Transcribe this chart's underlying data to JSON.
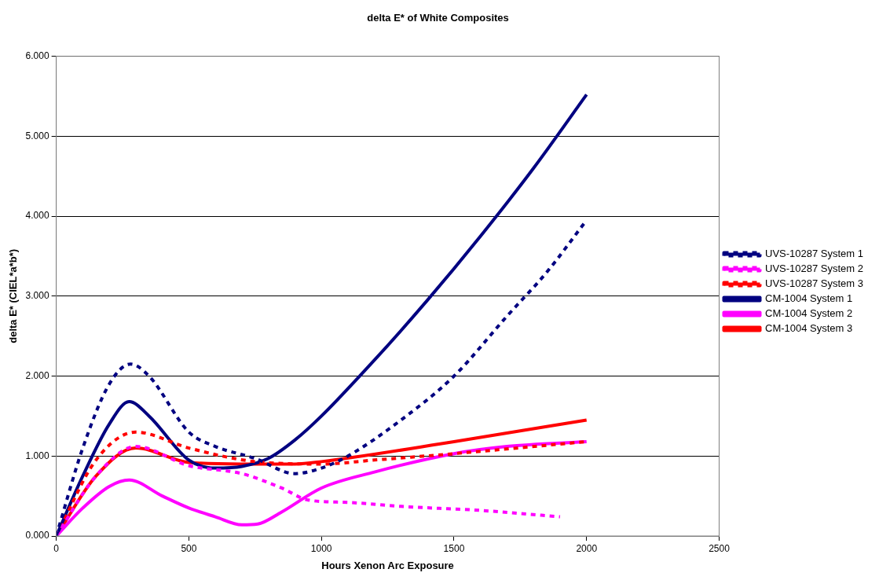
{
  "chart_data": {
    "type": "line",
    "title": "delta E* of White Composites",
    "xlabel": "Hours Xenon Arc Exposure",
    "ylabel": "delta E* (CIEL*a*b*)",
    "xlim": [
      0,
      2500
    ],
    "xticks": [
      0,
      500,
      1000,
      1500,
      2000,
      2500
    ],
    "ylim": [
      0,
      6
    ],
    "yticks": [
      {
        "value": 0,
        "label": "0.000"
      },
      {
        "value": 1,
        "label": "1.000"
      },
      {
        "value": 2,
        "label": "2.000"
      },
      {
        "value": 3,
        "label": "3.000"
      },
      {
        "value": 4,
        "label": "4.000"
      },
      {
        "value": 5,
        "label": "5.000"
      },
      {
        "value": 6,
        "label": "6.000"
      }
    ],
    "grid": "y",
    "legend": "right",
    "marker": "none",
    "series": [
      {
        "name": "CM-1004 System 1",
        "color": "#000080",
        "line_style": "solid",
        "x": [
          0,
          100,
          200,
          275,
          350,
          500,
          600,
          700,
          800,
          900,
          1000,
          1200,
          1400,
          1600,
          1800,
          2000
        ],
        "values": [
          0,
          0.75,
          1.4,
          1.68,
          1.5,
          0.95,
          0.85,
          0.87,
          0.97,
          1.2,
          1.5,
          2.2,
          2.95,
          3.75,
          4.6,
          5.52
        ]
      },
      {
        "name": "CM-1004 System 2",
        "color": "#ff00ff",
        "line_style": "solid",
        "x": [
          0,
          100,
          200,
          275,
          400,
          500,
          600,
          700,
          760,
          850,
          1000,
          1200,
          1500,
          1700,
          2000
        ],
        "values": [
          0,
          0.35,
          0.62,
          0.7,
          0.5,
          0.35,
          0.24,
          0.14,
          0.15,
          0.3,
          0.6,
          0.8,
          1.03,
          1.12,
          1.18
        ]
      },
      {
        "name": "CM-1004 System 3",
        "color": "#ff0000",
        "line_style": "solid",
        "x": [
          0,
          150,
          300,
          500,
          700,
          900,
          1000,
          1500,
          2000
        ],
        "values": [
          0,
          0.75,
          1.1,
          0.92,
          0.9,
          0.9,
          0.93,
          1.18,
          1.45
        ]
      },
      {
        "name": "UVS-10287 System 1",
        "color": "#000080",
        "line_style": "dashed",
        "x": [
          0,
          100,
          200,
          280,
          350,
          500,
          600,
          750,
          900,
          1000,
          1100,
          1300,
          1500,
          1700,
          1850,
          2000
        ],
        "values": [
          0,
          1.1,
          1.9,
          2.15,
          2.0,
          1.3,
          1.12,
          0.97,
          0.78,
          0.85,
          1.0,
          1.45,
          2.0,
          2.75,
          3.3,
          3.95
        ]
      },
      {
        "name": "UVS-10287 System 2",
        "color": "#ff00ff",
        "line_style": "dashed",
        "x": [
          0,
          150,
          300,
          500,
          700,
          850,
          950,
          1100,
          1300,
          1600,
          1900
        ],
        "values": [
          0,
          0.75,
          1.12,
          0.88,
          0.78,
          0.6,
          0.45,
          0.42,
          0.37,
          0.32,
          0.24
        ]
      },
      {
        "name": "UVS-10287 System 3",
        "color": "#ff0000",
        "line_style": "dashed",
        "x": [
          0,
          150,
          300,
          500,
          750,
          1000,
          1200,
          1500,
          2000
        ],
        "values": [
          0,
          0.95,
          1.3,
          1.1,
          0.93,
          0.9,
          0.95,
          1.03,
          1.18
        ]
      }
    ]
  }
}
